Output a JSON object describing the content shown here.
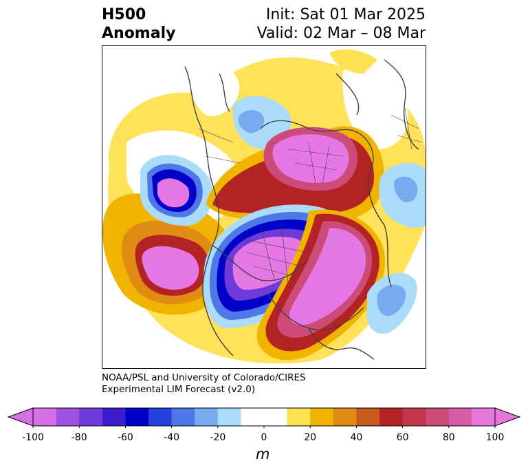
{
  "title": {
    "left_line1": "H500",
    "left_line2": "Anomaly",
    "right_line1": "Init: Sat 01 Mar 2025",
    "right_line2": "Valid: 02 Mar – 08 Mar"
  },
  "credit": {
    "line1": "NOAA/PSL and University of Colorado/CIRES",
    "line2": "Experimental LIM Forecast (v2.0)"
  },
  "colorbar": {
    "unit": "m",
    "ticks": [
      "-100",
      "-80",
      "-60",
      "-40",
      "-20",
      "0",
      "20",
      "40",
      "60",
      "80",
      "100"
    ],
    "colors": [
      "#d66ee6",
      "#a052e0",
      "#6e3ad8",
      "#3c1ed0",
      "#0000c8",
      "#2840dc",
      "#4e78e8",
      "#78aaf0",
      "#aadcfa",
      "#ffffff",
      "#ffffff",
      "#ffe050",
      "#f0b400",
      "#e08c14",
      "#c85a1e",
      "#b42323",
      "#c0374b",
      "#cc4b78",
      "#d75ea6",
      "#e678dc"
    ]
  },
  "anomaly_colors": {
    "neg_strong": "#e678e6",
    "neg_deep": "#0000c8",
    "neg_mid": "#4e78e8",
    "neg_light": "#aadcfa",
    "pos_light": "#ffe050",
    "pos_mid": "#f0b400",
    "pos_orange": "#e08c14",
    "pos_red": "#b42323",
    "pos_rose": "#cc4b78",
    "pos_strong": "#e678e6"
  }
}
